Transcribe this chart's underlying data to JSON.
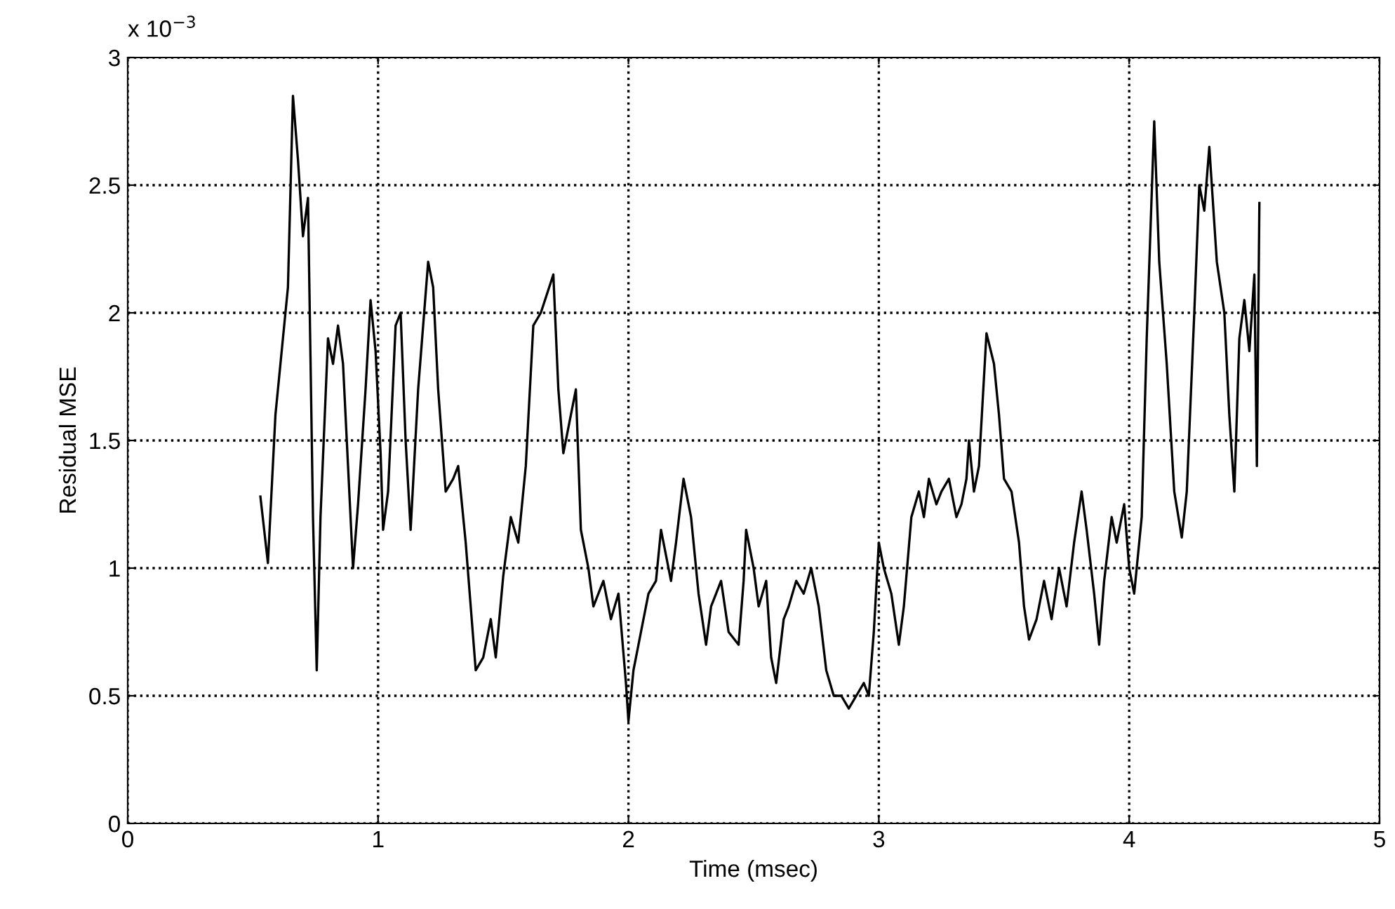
{
  "chart_data": {
    "type": "line",
    "xlabel": "Time (msec)",
    "ylabel": "Residual MSE",
    "annotations": [
      "x 10$^{−3}$"
    ],
    "xlim": [
      0,
      5
    ],
    "xticks": [
      0,
      1,
      2,
      3,
      4,
      5
    ],
    "ylim": [
      0,
      3
    ],
    "yticks": [
      0,
      0.5,
      1,
      1.5,
      2,
      2.5,
      3
    ],
    "grid": true,
    "legend": false,
    "marker": "none",
    "line_style": "solid",
    "series": [
      {
        "color": "#000000",
        "x": [
          0.53,
          0.56,
          0.59,
          0.62,
          0.64,
          0.66,
          0.68,
          0.7,
          0.72,
          0.74,
          0.755,
          0.77,
          0.8,
          0.82,
          0.84,
          0.86,
          0.88,
          0.9,
          0.92,
          0.95,
          0.97,
          0.99,
          1.01,
          1.02,
          1.04,
          1.07,
          1.09,
          1.11,
          1.13,
          1.16,
          1.2,
          1.22,
          1.24,
          1.27,
          1.3,
          1.32,
          1.35,
          1.39,
          1.42,
          1.45,
          1.47,
          1.5,
          1.53,
          1.56,
          1.59,
          1.62,
          1.65,
          1.7,
          1.72,
          1.74,
          1.77,
          1.79,
          1.81,
          1.84,
          1.86,
          1.9,
          1.93,
          1.96,
          1.99,
          2.0,
          2.02,
          2.05,
          2.08,
          2.11,
          2.13,
          2.15,
          2.17,
          2.19,
          2.22,
          2.25,
          2.28,
          2.31,
          2.33,
          2.37,
          2.4,
          2.44,
          2.46,
          2.47,
          2.5,
          2.52,
          2.55,
          2.57,
          2.59,
          2.62,
          2.64,
          2.67,
          2.7,
          2.73,
          2.76,
          2.79,
          2.82,
          2.85,
          2.88,
          2.91,
          2.94,
          2.96,
          2.98,
          3.0,
          3.02,
          3.05,
          3.08,
          3.1,
          3.13,
          3.16,
          3.18,
          3.2,
          3.23,
          3.25,
          3.28,
          3.31,
          3.33,
          3.35,
          3.36,
          3.38,
          3.4,
          3.43,
          3.46,
          3.48,
          3.5,
          3.53,
          3.56,
          3.58,
          3.6,
          3.63,
          3.66,
          3.69,
          3.72,
          3.75,
          3.78,
          3.81,
          3.83,
          3.86,
          3.88,
          3.9,
          3.93,
          3.95,
          3.98,
          4.0,
          4.02,
          4.05,
          4.07,
          4.1,
          4.12,
          4.15,
          4.18,
          4.21,
          4.23,
          4.26,
          4.28,
          4.3,
          4.32,
          4.35,
          4.38,
          4.4,
          4.42,
          4.44,
          4.46,
          4.48,
          4.5,
          4.51,
          4.52
        ],
        "values": [
          1.28,
          1.02,
          1.6,
          1.9,
          2.1,
          2.85,
          2.6,
          2.3,
          2.45,
          1.2,
          0.6,
          1.2,
          1.9,
          1.8,
          1.95,
          1.8,
          1.4,
          1.0,
          1.25,
          1.7,
          2.05,
          1.85,
          1.45,
          1.15,
          1.3,
          1.95,
          2.0,
          1.5,
          1.15,
          1.7,
          2.2,
          2.1,
          1.7,
          1.3,
          1.35,
          1.4,
          1.1,
          0.6,
          0.65,
          0.8,
          0.65,
          0.97,
          1.2,
          1.1,
          1.4,
          1.95,
          2.0,
          2.15,
          1.7,
          1.45,
          1.6,
          1.7,
          1.15,
          1.0,
          0.85,
          0.95,
          0.8,
          0.9,
          0.55,
          0.4,
          0.6,
          0.75,
          0.9,
          0.95,
          1.15,
          1.05,
          0.95,
          1.1,
          1.35,
          1.2,
          0.9,
          0.7,
          0.85,
          0.95,
          0.75,
          0.7,
          0.95,
          1.15,
          1.0,
          0.85,
          0.95,
          0.65,
          0.55,
          0.8,
          0.85,
          0.95,
          0.9,
          1.0,
          0.85,
          0.6,
          0.5,
          0.5,
          0.45,
          0.5,
          0.55,
          0.5,
          0.75,
          1.1,
          1.0,
          0.9,
          0.7,
          0.85,
          1.2,
          1.3,
          1.2,
          1.35,
          1.25,
          1.3,
          1.35,
          1.2,
          1.25,
          1.35,
          1.5,
          1.3,
          1.4,
          1.92,
          1.8,
          1.6,
          1.35,
          1.3,
          1.1,
          0.85,
          0.72,
          0.8,
          0.95,
          0.8,
          1.0,
          0.85,
          1.1,
          1.3,
          1.15,
          0.9,
          0.7,
          0.95,
          1.2,
          1.1,
          1.25,
          1.0,
          0.9,
          1.2,
          1.9,
          2.75,
          2.2,
          1.8,
          1.3,
          1.12,
          1.3,
          2.0,
          2.5,
          2.4,
          2.65,
          2.2,
          2.0,
          1.6,
          1.3,
          1.9,
          2.05,
          1.85,
          2.15,
          1.4,
          2.43
        ]
      }
    ]
  }
}
